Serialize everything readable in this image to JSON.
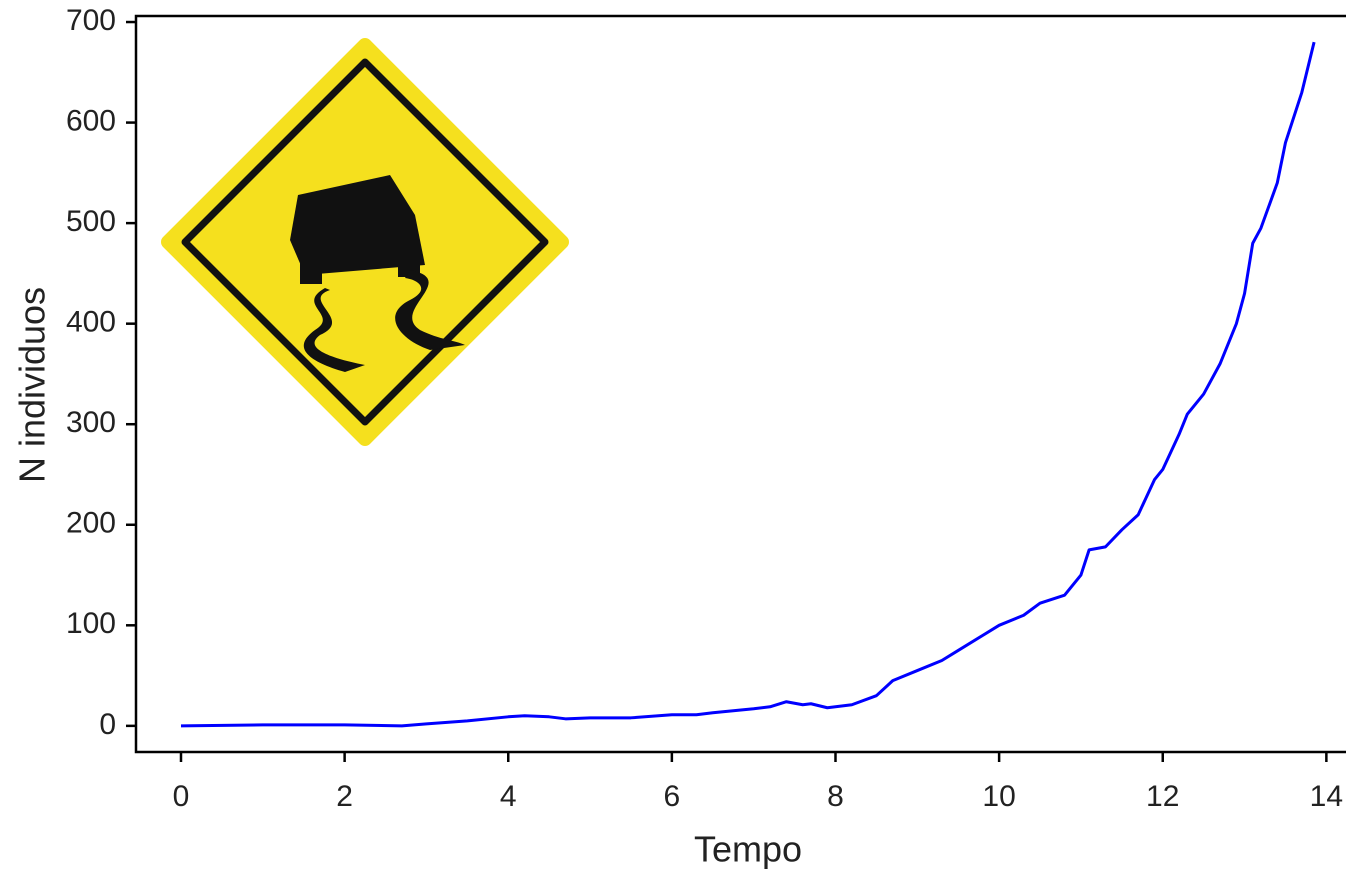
{
  "chart_data": {
    "type": "line",
    "x_label": "Tempo",
    "y_label": "N individuos",
    "x": [
      0,
      1,
      2,
      2.7,
      3,
      3.5,
      4,
      4.2,
      4.5,
      4.7,
      5,
      5.5,
      6,
      6.3,
      6.5,
      7,
      7.2,
      7.4,
      7.6,
      7.7,
      7.9,
      8.2,
      8.5,
      8.7,
      9,
      9.3,
      9.5,
      9.8,
      10,
      10.3,
      10.5,
      10.8,
      11,
      11.1,
      11.3,
      11.5,
      11.7,
      11.9,
      12,
      12.2,
      12.3,
      12.5,
      12.7,
      12.9,
      13,
      13.1,
      13.2,
      13.4,
      13.5,
      13.7,
      13.85
    ],
    "values": [
      0,
      1,
      1,
      0,
      2,
      5,
      9,
      10,
      9,
      7,
      8,
      8,
      11,
      11,
      13,
      17,
      19,
      24,
      21,
      22,
      18,
      21,
      30,
      45,
      55,
      65,
      75,
      90,
      100,
      110,
      122,
      130,
      150,
      175,
      178,
      195,
      210,
      245,
      255,
      290,
      310,
      330,
      360,
      400,
      430,
      480,
      495,
      540,
      580,
      630,
      680
    ],
    "color": "#0000ff",
    "xlim": [
      -0.55,
      14.24
    ],
    "xticks": [
      0,
      2,
      4,
      6,
      8,
      10,
      12,
      14
    ],
    "ylim": [
      -26,
      706
    ],
    "yticks": [
      0,
      100,
      200,
      300,
      400,
      500,
      600,
      700
    ]
  }
}
